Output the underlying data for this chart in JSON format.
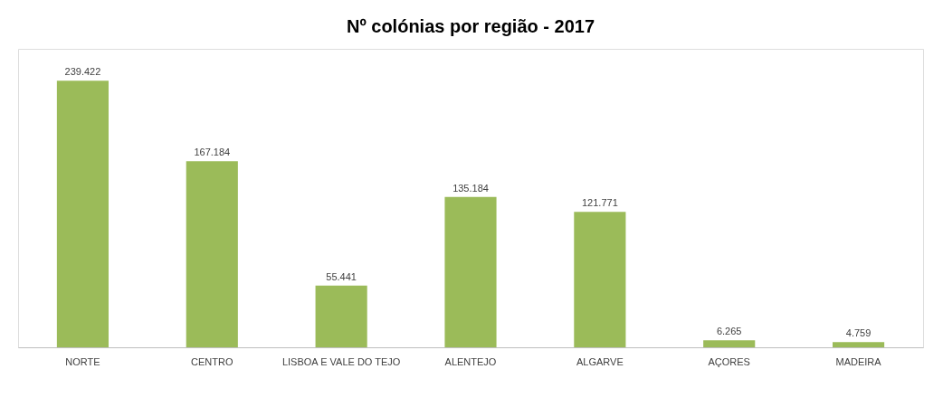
{
  "chart_data": {
    "type": "bar",
    "title": "Nº colónias por região - 2017",
    "categories": [
      "NORTE",
      "CENTRO",
      "LISBOA E VALE DO TEJO",
      "ALENTEJO",
      "ALGARVE",
      "AÇORES",
      "MADEIRA"
    ],
    "values": [
      239422,
      167184,
      55441,
      135184,
      121771,
      6265,
      4759
    ],
    "value_labels": [
      "239.422",
      "167.184",
      "55.441",
      "135.184",
      "121.771",
      "6.265",
      "4.759"
    ],
    "color": "#9bbb59"
  }
}
